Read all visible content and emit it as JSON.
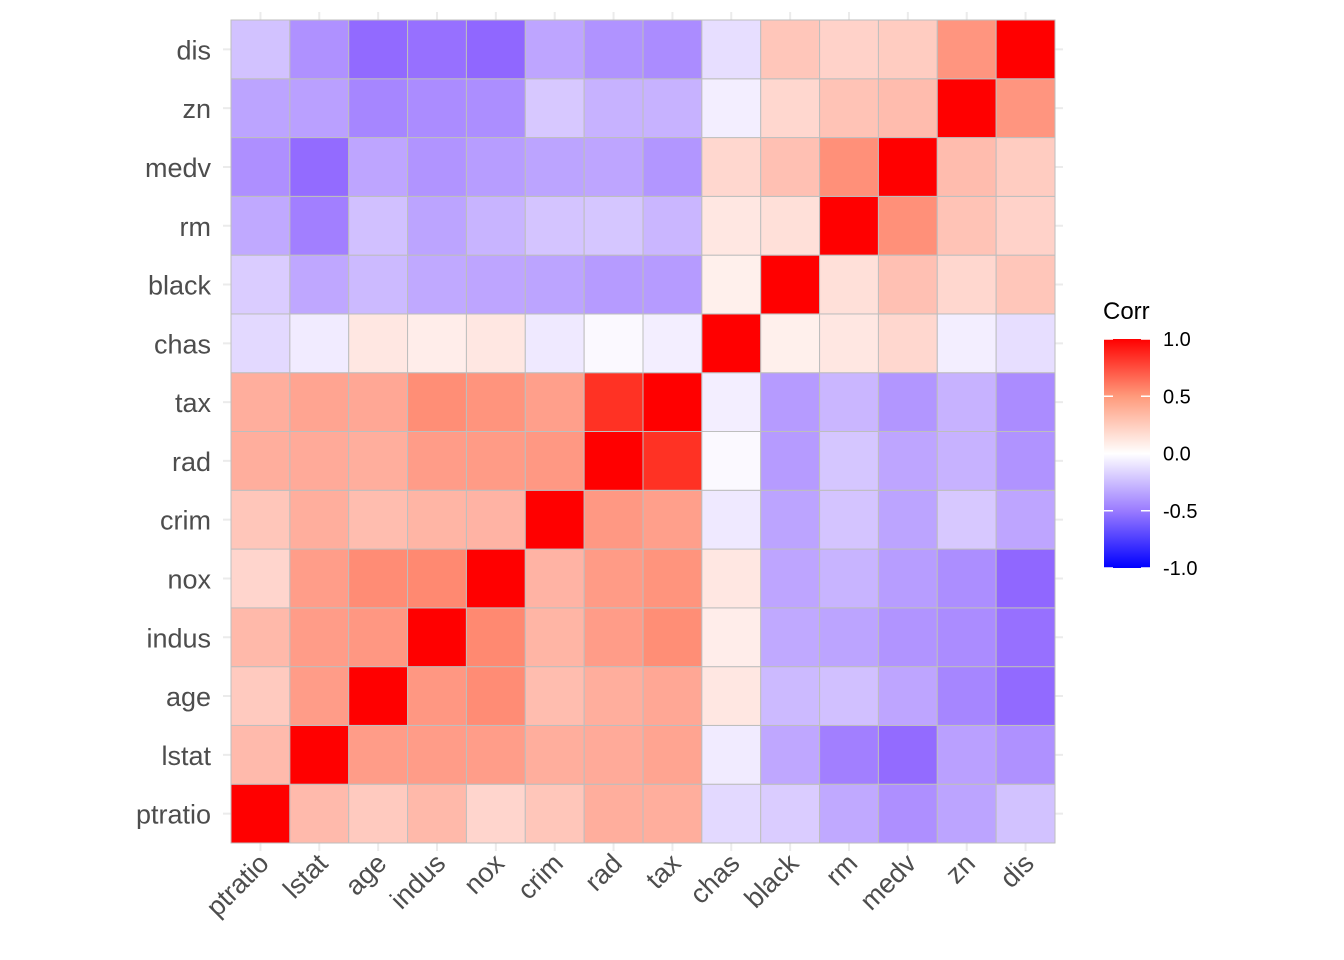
{
  "chart_data": {
    "type": "heatmap",
    "title": "",
    "xlabel": "",
    "ylabel": "",
    "variables": [
      "ptratio",
      "lstat",
      "age",
      "indus",
      "nox",
      "crim",
      "rad",
      "tax",
      "chas",
      "black",
      "rm",
      "medv",
      "zn",
      "dis"
    ],
    "x_categories": [
      "ptratio",
      "lstat",
      "age",
      "indus",
      "nox",
      "crim",
      "rad",
      "tax",
      "chas",
      "black",
      "rm",
      "medv",
      "zn",
      "dis"
    ],
    "y_categories_bottom_to_top": [
      "ptratio",
      "lstat",
      "age",
      "indus",
      "nox",
      "crim",
      "rad",
      "tax",
      "chas",
      "black",
      "rm",
      "medv",
      "zn",
      "dis"
    ],
    "matrix": [
      [
        1.0,
        0.37,
        0.26,
        0.38,
        0.19,
        0.29,
        0.46,
        0.46,
        -0.12,
        -0.18,
        -0.36,
        -0.51,
        -0.39,
        -0.23
      ],
      [
        0.37,
        1.0,
        0.6,
        0.6,
        0.59,
        0.46,
        0.49,
        0.54,
        -0.05,
        -0.37,
        -0.61,
        -0.74,
        -0.41,
        -0.5
      ],
      [
        0.26,
        0.6,
        1.0,
        0.64,
        0.73,
        0.35,
        0.46,
        0.51,
        0.09,
        -0.27,
        -0.24,
        -0.38,
        -0.57,
        -0.75
      ],
      [
        0.38,
        0.6,
        0.64,
        1.0,
        0.76,
        0.41,
        0.6,
        0.72,
        0.06,
        -0.36,
        -0.39,
        -0.48,
        -0.53,
        -0.71
      ],
      [
        0.19,
        0.59,
        0.73,
        0.76,
        1.0,
        0.42,
        0.61,
        0.67,
        0.09,
        -0.38,
        -0.3,
        -0.43,
        -0.52,
        -0.77
      ],
      [
        0.29,
        0.46,
        0.35,
        0.41,
        0.42,
        1.0,
        0.63,
        0.58,
        -0.06,
        -0.39,
        -0.22,
        -0.39,
        -0.2,
        -0.38
      ],
      [
        0.46,
        0.49,
        0.46,
        0.6,
        0.61,
        0.63,
        1.0,
        0.91,
        -0.01,
        -0.44,
        -0.21,
        -0.38,
        -0.31,
        -0.49
      ],
      [
        0.46,
        0.54,
        0.51,
        0.72,
        0.67,
        0.58,
        0.91,
        1.0,
        -0.04,
        -0.44,
        -0.29,
        -0.47,
        -0.31,
        -0.53
      ],
      [
        -0.12,
        -0.05,
        0.09,
        0.06,
        0.09,
        -0.06,
        -0.01,
        -0.04,
        1.0,
        0.05,
        0.09,
        0.18,
        -0.04,
        -0.1
      ],
      [
        -0.18,
        -0.37,
        -0.27,
        -0.36,
        -0.38,
        -0.39,
        -0.44,
        -0.44,
        0.05,
        1.0,
        0.13,
        0.33,
        0.18,
        0.29
      ],
      [
        -0.36,
        -0.61,
        -0.24,
        -0.39,
        -0.3,
        -0.22,
        -0.21,
        -0.29,
        0.09,
        0.13,
        1.0,
        0.7,
        0.31,
        0.21
      ],
      [
        -0.51,
        -0.74,
        -0.38,
        -0.48,
        -0.43,
        -0.39,
        -0.38,
        -0.47,
        0.18,
        0.33,
        0.7,
        1.0,
        0.36,
        0.25
      ],
      [
        -0.39,
        -0.41,
        -0.57,
        -0.53,
        -0.52,
        -0.2,
        -0.31,
        -0.31,
        -0.04,
        0.18,
        0.31,
        0.36,
        1.0,
        0.66
      ],
      [
        -0.23,
        -0.5,
        -0.75,
        -0.71,
        -0.77,
        -0.38,
        -0.49,
        -0.53,
        -0.1,
        0.29,
        0.21,
        0.25,
        0.66,
        1.0
      ]
    ],
    "color_scale": {
      "low": "#0000FF",
      "mid": "#FFFFFF",
      "high": "#FF0000",
      "limits": [
        -1.0,
        1.0
      ]
    },
    "legend": {
      "title": "Corr",
      "position": "right",
      "ticks": [
        "1.0",
        "0.5",
        "0.0",
        "-0.5",
        "-1.0"
      ],
      "tick_values": [
        1.0,
        0.5,
        0.0,
        -0.5,
        -1.0
      ]
    },
    "grid": true,
    "tile_border_color": "#BEBEBE"
  }
}
